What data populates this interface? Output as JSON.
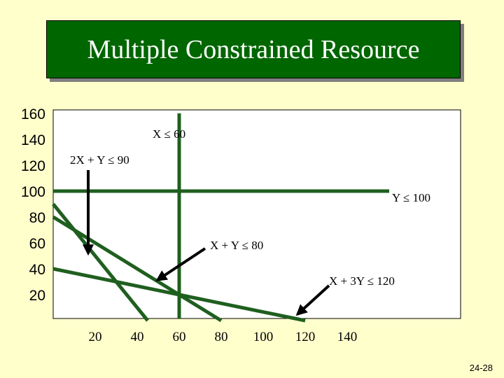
{
  "title": "Multiple Constrained Resource",
  "footer": "24-28",
  "colors": {
    "background": "#FFFFCC",
    "title_bg": "#006600",
    "line": "#1F5F1F",
    "plot_bg": "#FFFFFF",
    "arrow": "#000000"
  },
  "chart_data": {
    "type": "line",
    "title": "",
    "xlabel": "",
    "ylabel": "",
    "xlim": [
      0,
      160
    ],
    "ylim": [
      0,
      160
    ],
    "x_ticks": [
      20,
      40,
      60,
      80,
      100,
      120,
      140
    ],
    "y_ticks": [
      20,
      40,
      60,
      80,
      100,
      120,
      140,
      160
    ],
    "grid": false,
    "constraints": [
      {
        "name": "X ≤ 60",
        "points": [
          [
            60,
            0
          ],
          [
            60,
            160
          ]
        ]
      },
      {
        "name": "Y ≤ 100",
        "points": [
          [
            0,
            100
          ],
          [
            160,
            100
          ]
        ]
      },
      {
        "name": "2X + Y ≤ 90",
        "points": [
          [
            0,
            90
          ],
          [
            45,
            0
          ]
        ]
      },
      {
        "name": "X + Y ≤ 80",
        "points": [
          [
            0,
            80
          ],
          [
            80,
            0
          ]
        ]
      },
      {
        "name": "X + 3Y ≤ 120",
        "points": [
          [
            0,
            40
          ],
          [
            120,
            0
          ]
        ]
      }
    ]
  }
}
